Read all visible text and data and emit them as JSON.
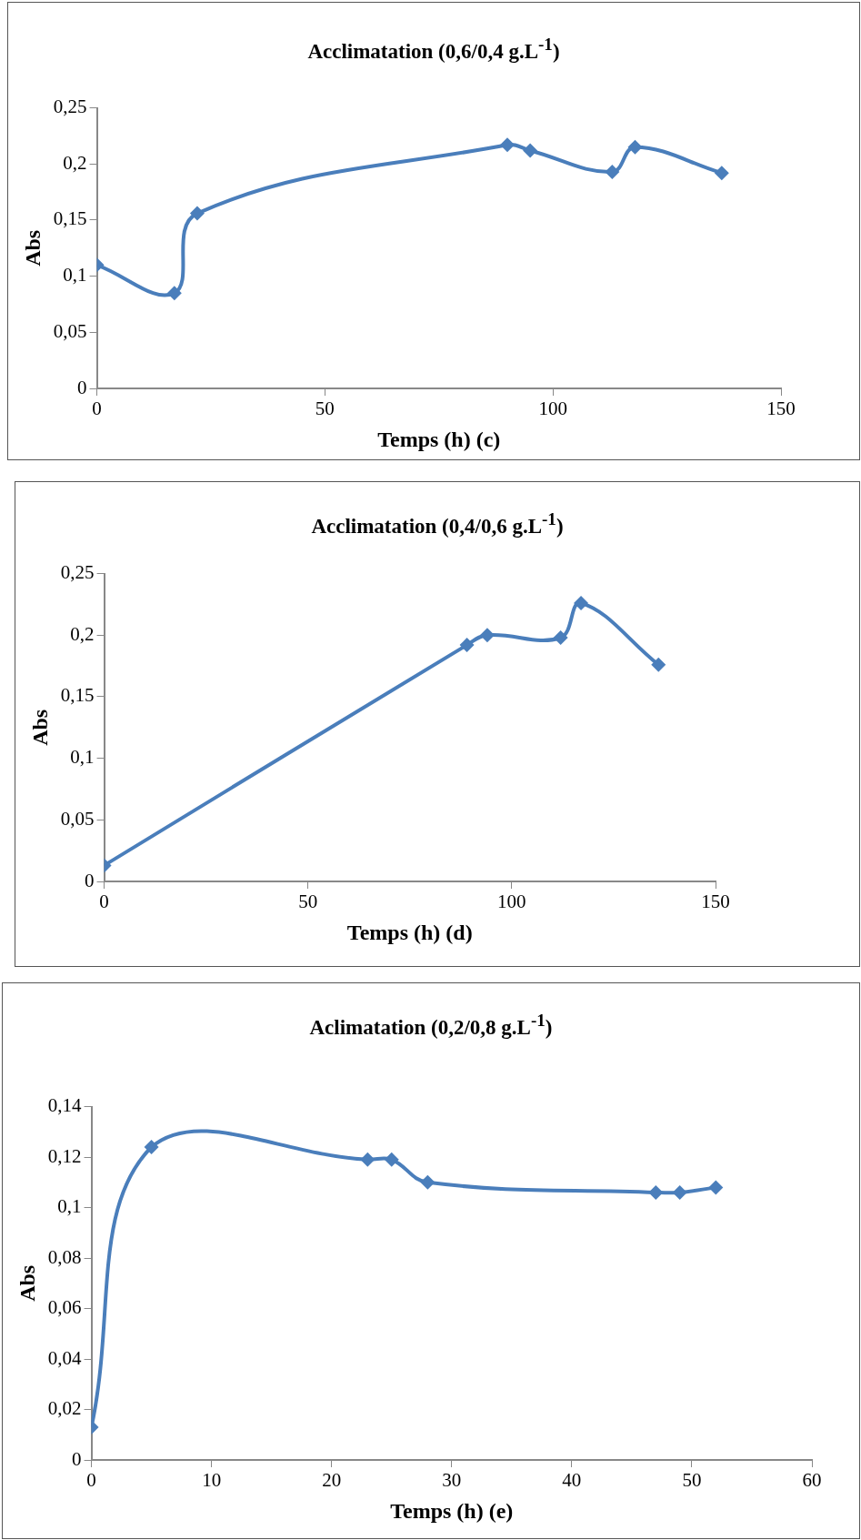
{
  "chart_data": [
    {
      "type": "line",
      "title": "Acclimatation (0,6/0,4 g.L$^{-1}$)",
      "xlabel": "Temps (h) (c)",
      "ylabel": "Abs",
      "marker": "diamond",
      "grid": false,
      "legend": false,
      "xlim": [
        0,
        150
      ],
      "xticks": [
        0,
        50,
        100,
        150
      ],
      "ylim": [
        0,
        0.25
      ],
      "yticks": [
        {
          "value": 0,
          "label": "0"
        },
        {
          "value": 0.05,
          "label": "0,05"
        },
        {
          "value": 0.1,
          "label": "0,1"
        },
        {
          "value": 0.15,
          "label": "0,15"
        },
        {
          "value": 0.2,
          "label": "0,2"
        },
        {
          "value": 0.25,
          "label": "0,25"
        }
      ],
      "series": [
        {
          "color": "#4a7ebb",
          "x": [
            0,
            17,
            22,
            90,
            95,
            113,
            118,
            137
          ],
          "values": [
            0.11,
            0.085,
            0.156,
            0.217,
            0.212,
            0.193,
            0.215,
            0.192
          ]
        }
      ]
    },
    {
      "type": "line",
      "title": "Acclimatation (0,4/0,6 g.L$^{-1}$)",
      "xlabel": "Temps (h) (d)",
      "ylabel": "Abs",
      "marker": "diamond",
      "grid": false,
      "legend": false,
      "xlim": [
        0,
        150
      ],
      "xticks": [
        0,
        50,
        100,
        150
      ],
      "ylim": [
        0,
        0.25
      ],
      "yticks": [
        {
          "value": 0,
          "label": "0"
        },
        {
          "value": 0.05,
          "label": "0,05"
        },
        {
          "value": 0.1,
          "label": "0,1"
        },
        {
          "value": 0.15,
          "label": "0,15"
        },
        {
          "value": 0.2,
          "label": "0,2"
        },
        {
          "value": 0.25,
          "label": "0,25"
        }
      ],
      "series": [
        {
          "color": "#4a7ebb",
          "x": [
            0,
            89,
            94,
            112,
            117,
            136
          ],
          "values": [
            0.013,
            0.192,
            0.2,
            0.198,
            0.226,
            0.176
          ]
        }
      ]
    },
    {
      "type": "line",
      "title": "Aclimatation (0,2/0,8 g.L$^{-1}$)",
      "xlabel": "Temps (h) (e)",
      "ylabel": "Abs",
      "marker": "diamond",
      "grid": false,
      "legend": false,
      "xlim": [
        0,
        60
      ],
      "xticks": [
        0,
        10,
        20,
        30,
        40,
        50,
        60
      ],
      "ylim": [
        0,
        0.14
      ],
      "yticks": [
        {
          "value": 0,
          "label": "0"
        },
        {
          "value": 0.02,
          "label": "0,02"
        },
        {
          "value": 0.04,
          "label": "0,04"
        },
        {
          "value": 0.06,
          "label": "0,06"
        },
        {
          "value": 0.08,
          "label": "0,08"
        },
        {
          "value": 0.1,
          "label": "0,1"
        },
        {
          "value": 0.12,
          "label": "0,12"
        },
        {
          "value": 0.14,
          "label": "0,14"
        }
      ],
      "series": [
        {
          "color": "#4a7ebb",
          "x": [
            0,
            5,
            23,
            25,
            28,
            47,
            49,
            52
          ],
          "values": [
            0.013,
            0.124,
            0.119,
            0.119,
            0.11,
            0.106,
            0.106,
            0.108
          ]
        }
      ]
    }
  ]
}
